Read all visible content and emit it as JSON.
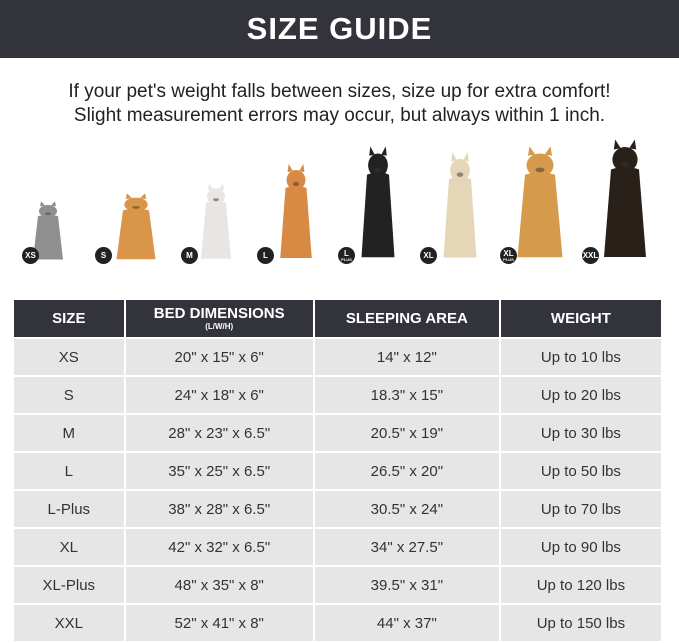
{
  "title": "SIZE GUIDE",
  "intro": [
    "If your pet's weight falls between sizes, size up for extra comfort!",
    "Slight measurement errors may occur, but always within 1 inch."
  ],
  "pets": [
    {
      "badge": "XS",
      "sub": "",
      "animal": "cat",
      "color": "#8f8f92"
    },
    {
      "badge": "S",
      "sub": "",
      "animal": "pomeranian",
      "color": "#d9954a"
    },
    {
      "badge": "M",
      "sub": "",
      "animal": "french-bulldog",
      "color": "#e8e6e2"
    },
    {
      "badge": "L",
      "sub": "",
      "animal": "shiba-inu",
      "color": "#d88a45"
    },
    {
      "badge": "L",
      "sub": "PLUS",
      "animal": "border-collie",
      "color": "#222222"
    },
    {
      "badge": "XL",
      "sub": "",
      "animal": "labrador",
      "color": "#e6d6b8"
    },
    {
      "badge": "XL",
      "sub": "PLUS",
      "animal": "golden-retriever",
      "color": "#d69a4c"
    },
    {
      "badge": "XXL",
      "sub": "",
      "animal": "doberman",
      "color": "#2a201a"
    }
  ],
  "table": {
    "headers": [
      {
        "label": "SIZE",
        "sub": ""
      },
      {
        "label": "BED DIMENSIONS",
        "sub": "(L/W/H)"
      },
      {
        "label": "SLEEPING AREA",
        "sub": ""
      },
      {
        "label": "WEIGHT",
        "sub": ""
      }
    ],
    "rows": [
      [
        "XS",
        "20\" x 15\" x 6\"",
        "14\" x 12\"",
        "Up to 10 lbs"
      ],
      [
        "S",
        "24\" x 18\" x 6\"",
        "18.3\" x 15\"",
        "Up to 20 lbs"
      ],
      [
        "M",
        "28\" x 23\" x 6.5\"",
        "20.5\" x 19\"",
        "Up to 30 lbs"
      ],
      [
        "L",
        "35\" x 25\" x 6.5\"",
        "26.5\" x 20\"",
        "Up to 50 lbs"
      ],
      [
        "L-Plus",
        "38\" x 28\" x 6.5\"",
        "30.5\" x 24\"",
        "Up to 70 lbs"
      ],
      [
        "XL",
        "42\" x 32\" x 6.5\"",
        "34\" x 27.5\"",
        "Up to 90 lbs"
      ],
      [
        "XL-Plus",
        "48\" x 35\" x 8\"",
        "39.5\" x 31\"",
        "Up to 120 lbs"
      ],
      [
        "XXL",
        "52\" x 41\" x 8\"",
        "44\" x 37\"",
        "Up to 150 lbs"
      ]
    ]
  }
}
